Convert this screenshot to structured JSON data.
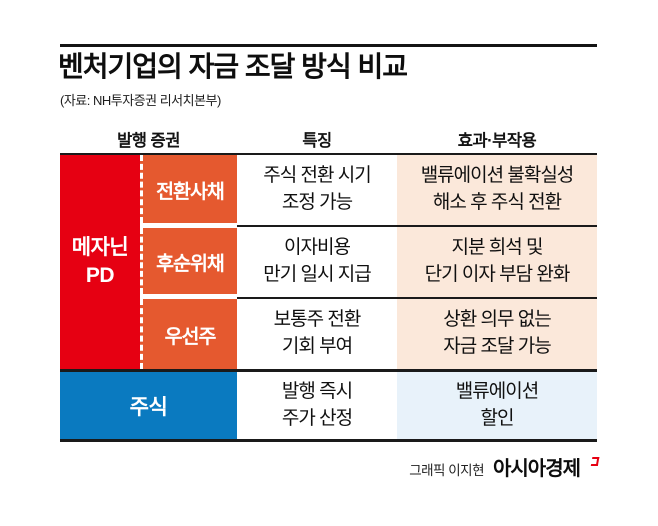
{
  "header": {
    "title": "벤처기업의 자금 조달 방식 비교",
    "source": "(자료: NH투자증권 리서치본부)"
  },
  "table": {
    "columns": [
      "발행 증권",
      "특징",
      "효과·부작용"
    ],
    "group": {
      "label_line1": "메자닌",
      "label_line2": "PD"
    },
    "rows": [
      {
        "security": "전환사채",
        "feature_line1": "주식 전환 시기",
        "feature_line2": "조정 가능",
        "effect_line1": "밸류에이션 불확실성",
        "effect_line2": "해소 후 주식 전환"
      },
      {
        "security": "후순위채",
        "feature_line1": "이자비용",
        "feature_line2": "만기 일시 지급",
        "effect_line1": "지분 희석 및",
        "effect_line2": "단기 이자 부담 완화"
      },
      {
        "security": "우선주",
        "feature_line1": "보통주 전환",
        "feature_line2": "기회 부여",
        "effect_line1": "상환 의무 없는",
        "effect_line2": "자금 조달 가능"
      }
    ],
    "stock_row": {
      "security": "주식",
      "feature_line1": "발행 즉시",
      "feature_line2": "주가 산정",
      "effect_line1": "밸류에이션",
      "effect_line2": "할인"
    }
  },
  "footer": {
    "credit": "그래픽 이지현",
    "logo": "아시아경제"
  },
  "colors": {
    "red": "#e60012",
    "orange": "#e5592f",
    "peach": "#fbe8da",
    "blue": "#0a7ac0",
    "lightblue": "#e8f2fa",
    "line": "#1a1a1a"
  }
}
